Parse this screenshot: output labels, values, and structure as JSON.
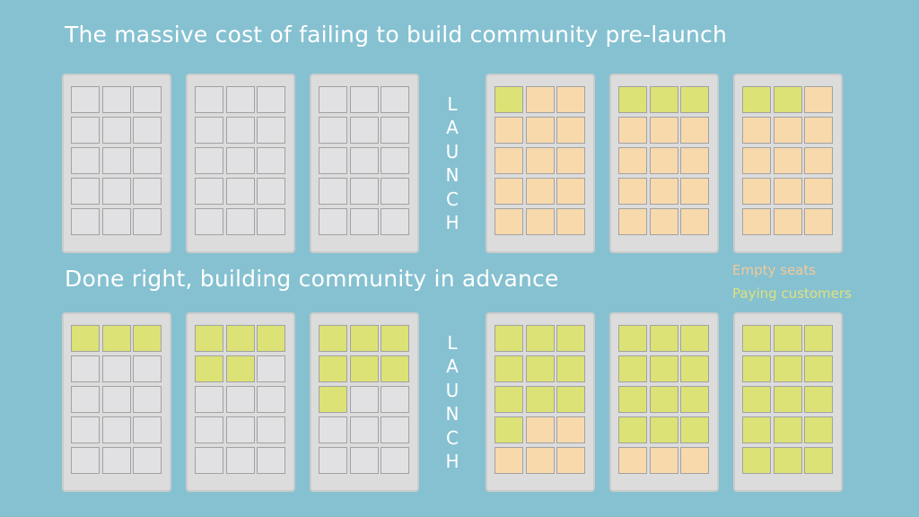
{
  "titles": {
    "top": "The massive cost of failing to build community pre-launch",
    "bottom": "Done right, building community in advance"
  },
  "launch_label": "LAUNCH",
  "legend": {
    "empty": {
      "label": "Empty seats",
      "color": "#f2c998"
    },
    "paying": {
      "label": "Paying customers",
      "color": "#dfe17c"
    }
  },
  "colors": {
    "unsold": "#e1e1e3",
    "empty": "#f8d9ac",
    "paying": "#dce275",
    "panel": "#dcdcdc",
    "background": "#86c1d1"
  },
  "grid": {
    "rows": 5,
    "cols": 3
  },
  "rows": [
    {
      "panels": [
        {
          "phase": "pre-launch",
          "paying_seats": 0
        },
        {
          "phase": "pre-launch",
          "paying_seats": 0
        },
        {
          "phase": "pre-launch",
          "paying_seats": 0
        },
        {
          "phase": "post-launch",
          "paying_seats": 1
        },
        {
          "phase": "post-launch",
          "paying_seats": 3
        },
        {
          "phase": "post-launch",
          "paying_seats": 2
        }
      ]
    },
    {
      "panels": [
        {
          "phase": "pre-launch",
          "paying_seats": 3
        },
        {
          "phase": "pre-launch",
          "paying_seats": 5
        },
        {
          "phase": "pre-launch",
          "paying_seats": 7
        },
        {
          "phase": "post-launch",
          "paying_seats": 10
        },
        {
          "phase": "post-launch",
          "paying_seats": 12
        },
        {
          "phase": "post-launch",
          "paying_seats": 15
        }
      ]
    }
  ]
}
